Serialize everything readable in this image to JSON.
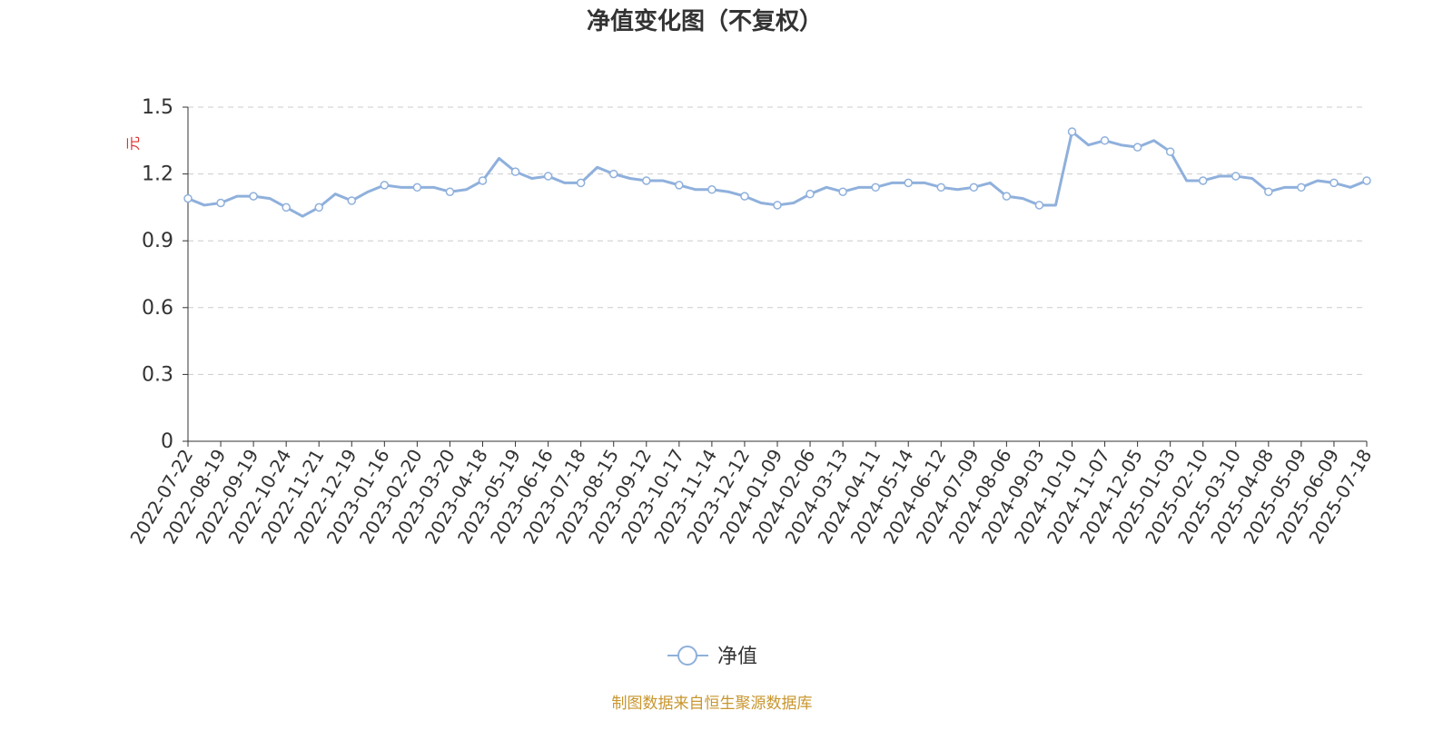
{
  "chart_data": {
    "type": "line",
    "title": "净值变化图（不复权）",
    "y_label": "元",
    "source": "制图数据来自恒生聚源数据库",
    "categories": [
      "2022-07-22",
      null,
      "2022-08-19",
      null,
      "2022-09-19",
      null,
      "2022-10-24",
      null,
      "2022-11-21",
      null,
      "2022-12-19",
      null,
      "2023-01-16",
      null,
      "2023-02-20",
      null,
      "2023-03-20",
      null,
      "2023-04-18",
      null,
      "2023-05-19",
      null,
      "2023-06-16",
      null,
      "2023-07-18",
      null,
      "2023-08-15",
      null,
      "2023-09-12",
      null,
      "2023-10-17",
      null,
      "2023-11-14",
      null,
      "2023-12-12",
      null,
      "2024-01-09",
      null,
      "2024-02-06",
      null,
      "2024-03-13",
      null,
      "2024-04-11",
      null,
      "2024-05-14",
      null,
      "2024-06-12",
      null,
      "2024-07-09",
      null,
      "2024-08-06",
      null,
      "2024-09-03",
      null,
      "2024-10-10",
      null,
      "2024-11-07",
      null,
      "2024-12-05",
      null,
      "2025-01-03",
      null,
      "2025-02-10",
      null,
      "2025-03-10",
      null,
      "2025-04-08",
      null,
      "2025-05-09",
      null,
      "2025-06-09",
      null,
      "2025-07-18"
    ],
    "series": [
      {
        "name": "净值",
        "color": "#8fb0dc",
        "values": [
          1.09,
          1.06,
          1.07,
          1.1,
          1.1,
          1.09,
          1.05,
          1.01,
          1.05,
          1.11,
          1.08,
          1.12,
          1.15,
          1.14,
          1.14,
          1.14,
          1.12,
          1.13,
          1.17,
          1.27,
          1.21,
          1.18,
          1.19,
          1.16,
          1.16,
          1.23,
          1.2,
          1.18,
          1.17,
          1.17,
          1.15,
          1.13,
          1.13,
          1.12,
          1.1,
          1.07,
          1.06,
          1.07,
          1.11,
          1.14,
          1.12,
          1.14,
          1.14,
          1.16,
          1.16,
          1.16,
          1.14,
          1.13,
          1.14,
          1.16,
          1.1,
          1.09,
          1.06,
          1.06,
          1.39,
          1.33,
          1.35,
          1.33,
          1.32,
          1.35,
          1.3,
          1.17,
          1.17,
          1.19,
          1.19,
          1.18,
          1.12,
          1.14,
          1.14,
          1.17,
          1.16,
          1.14,
          1.17
        ]
      }
    ],
    "ylim": [
      0,
      1.5
    ],
    "yticks": [
      0,
      0.3,
      0.6,
      0.9,
      1.2,
      1.5
    ],
    "grid": true
  }
}
